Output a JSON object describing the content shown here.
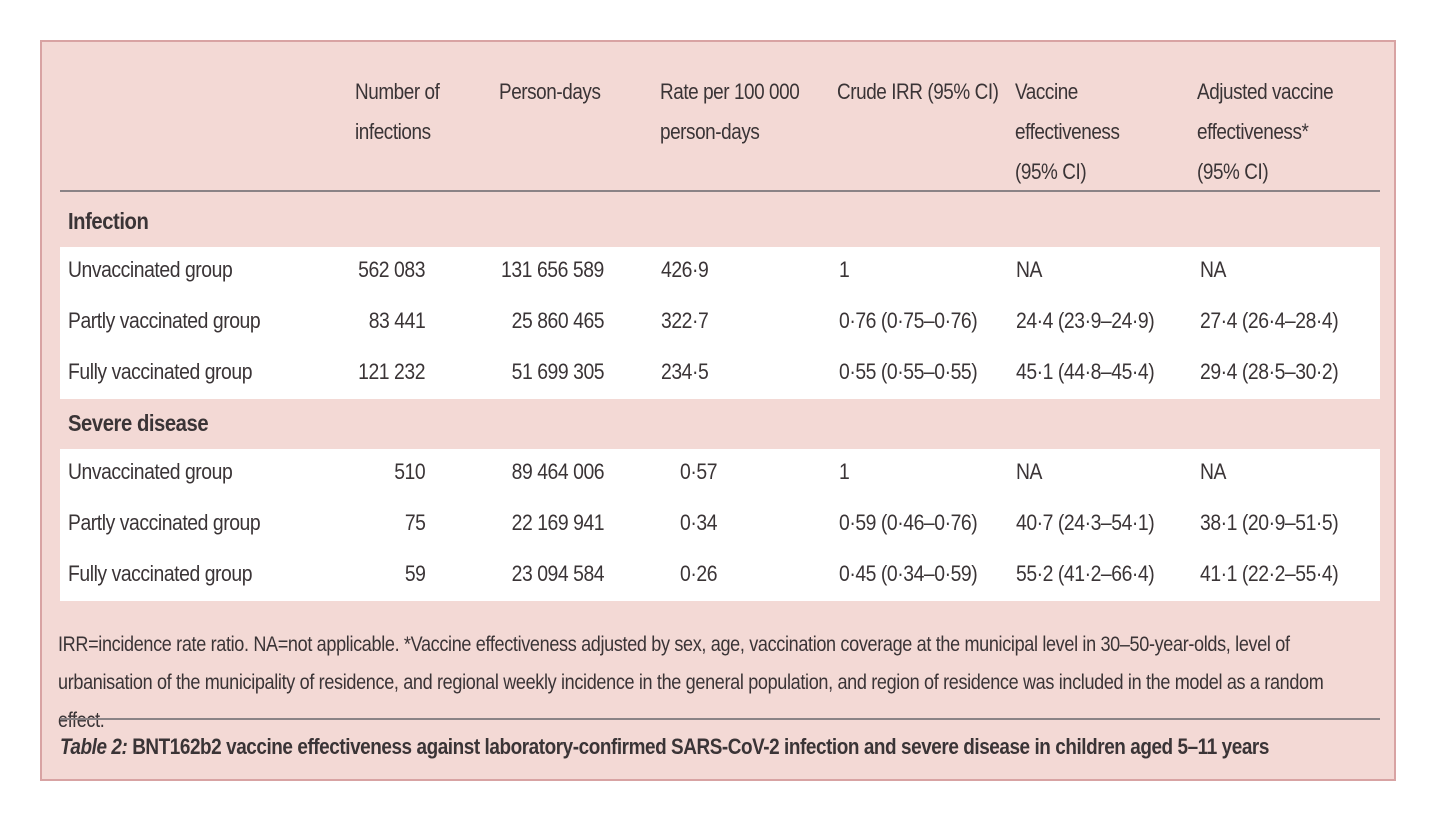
{
  "table": {
    "headers": {
      "group": "",
      "infections": "Number of\ninfections",
      "person_days": "Person-days",
      "rate": "Rate per 100 000\nperson-days",
      "crude_irr": "Crude IRR (95% CI)",
      "ve": "Vaccine\neffectiveness\n(95% CI)",
      "adjusted_ve": "Adjusted vaccine\neffectiveness*\n(95% CI)"
    },
    "sections": [
      {
        "title": "Infection",
        "rows": [
          {
            "group": "Unvaccinated group",
            "infections": "562 083",
            "person_days": "131 656 589",
            "rate": "426·9",
            "crude_irr": "1",
            "ve": "NA",
            "adjusted_ve": "NA"
          },
          {
            "group": "Partly vaccinated group",
            "infections": "83 441",
            "person_days": "25 860 465",
            "rate": "322·7",
            "crude_irr": "0·76 (0·75–0·76)",
            "ve": "24·4 (23·9–24·9)",
            "adjusted_ve": "27·4 (26·4–28·4)"
          },
          {
            "group": "Fully vaccinated group",
            "infections": "121 232",
            "person_days": "51 699 305",
            "rate": "234·5",
            "crude_irr": "0·55 (0·55–0·55)",
            "ve": "45·1 (44·8–45·4)",
            "adjusted_ve": "29·4 (28·5–30·2)"
          }
        ]
      },
      {
        "title": "Severe disease",
        "rows": [
          {
            "group": "Unvaccinated group",
            "infections": "510",
            "person_days": "89 464 006",
            "rate": "0·57",
            "crude_irr": "1",
            "ve": "NA",
            "adjusted_ve": "NA"
          },
          {
            "group": "Partly vaccinated group",
            "infections": "75",
            "person_days": "22 169 941",
            "rate": "0·34",
            "crude_irr": "0·59 (0·46–0·76)",
            "ve": "40·7 (24·3–54·1)",
            "adjusted_ve": "38·1 (20·9–51·5)"
          },
          {
            "group": "Fully vaccinated group",
            "infections": "59",
            "person_days": "23 094 584",
            "rate": "0·26",
            "crude_irr": "0·45 (0·34–0·59)",
            "ve": "55·2 (41·2–66·4)",
            "adjusted_ve": "41·1 (22·2–55·4)"
          }
        ]
      }
    ]
  },
  "footnote": "IRR=incidence rate ratio. NA=not applicable. *Vaccine effectiveness adjusted by sex, age, vaccination coverage at the municipal level in 30–50-year-olds, level of urbanisation of the municipality of residence, and regional weekly incidence in the general population, and region of residence was included in the model as a random effect.",
  "caption": {
    "label": "Table 2:",
    "text": " BNT162b2 vaccine effectiveness against laboratory-confirmed SARS-CoV-2 infection and severe disease in children aged 5–11 years"
  },
  "colors": {
    "panel_background": "#f3d9d5",
    "panel_border": "#d8a3a3",
    "row_background": "#ffffff",
    "text": "#3a3436"
  }
}
